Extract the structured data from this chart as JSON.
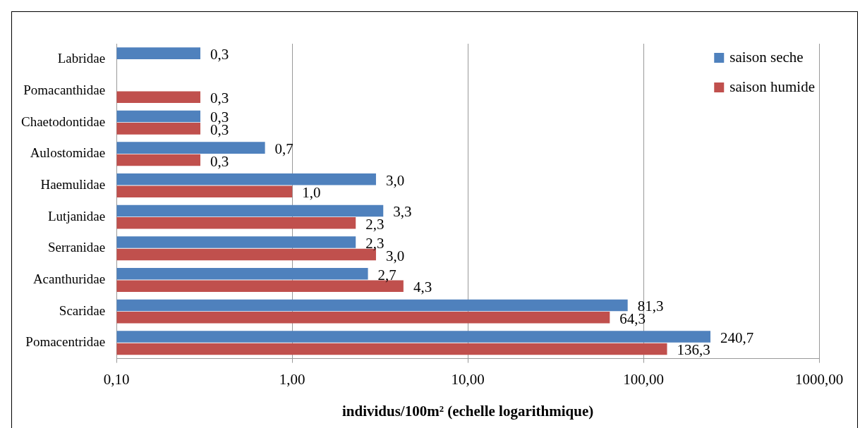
{
  "chart_data": {
    "type": "bar",
    "orientation": "horizontal",
    "categories": [
      "Labridae",
      "Pomacanthidae",
      "Chaetodontidae",
      "Aulostomidae",
      "Haemulidae",
      "Lutjanidae",
      "Serranidae",
      "Acanthuridae",
      "Scaridae",
      "Pomacentridae"
    ],
    "series": [
      {
        "name": "saison seche",
        "color": "#4f81bd",
        "values": [
          0.3,
          null,
          0.3,
          0.7,
          3.0,
          3.3,
          2.3,
          2.7,
          81.3,
          240.7
        ],
        "value_labels": [
          "0,3",
          null,
          "0,3",
          "0,7",
          "3,0",
          "3,3",
          "2,3",
          "2,7",
          "81,3",
          "240,7"
        ]
      },
      {
        "name": "saison humide",
        "color": "#c0504d",
        "values": [
          null,
          0.3,
          0.3,
          0.3,
          1.0,
          2.3,
          3.0,
          4.3,
          64.3,
          136.3
        ],
        "value_labels": [
          null,
          "0,3",
          "0,3",
          "0,3",
          "1,0",
          "2,3",
          "3,0",
          "4,3",
          "64,3",
          "136,3"
        ]
      }
    ],
    "log": "x",
    "xlim": [
      0.1,
      1000
    ],
    "xticks": [
      {
        "value": 0.1,
        "label": "0,10"
      },
      {
        "value": 1,
        "label": "1,00"
      },
      {
        "value": 10,
        "label": "10,00"
      },
      {
        "value": 100,
        "label": "100,00"
      },
      {
        "value": 1000,
        "label": "1000,00"
      }
    ],
    "xlabel": "individus/100m² (echelle logarithmique)",
    "grid": "x",
    "legend": "top right"
  }
}
